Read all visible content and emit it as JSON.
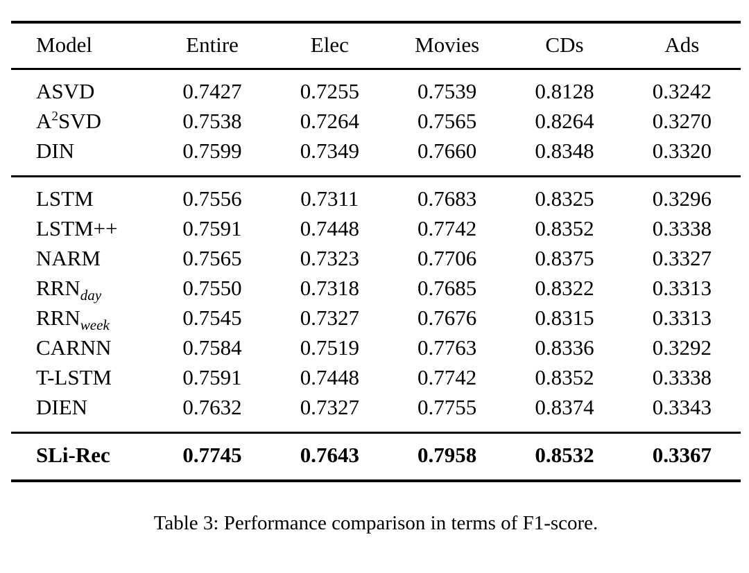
{
  "page": {
    "background_color": "#ffffff",
    "text_color": "#000000",
    "rule_color": "#000000"
  },
  "table": {
    "caption": "Table 3: Performance comparison in terms of F1-score.",
    "columns": [
      "Model",
      "Entire",
      "Elec",
      "Movies",
      "CDs",
      "Ads"
    ],
    "groups": [
      {
        "name": "feature-interaction-baselines",
        "rows": [
          {
            "model": [
              {
                "t": "ASVD"
              }
            ],
            "bold": false,
            "values": [
              "0.7427",
              "0.7255",
              "0.7539",
              "0.8128",
              "0.3242"
            ]
          },
          {
            "model": [
              {
                "t": "A"
              },
              {
                "t": "2",
                "script": "sup"
              },
              {
                "t": "SVD"
              }
            ],
            "bold": false,
            "values": [
              "0.7538",
              "0.7264",
              "0.7565",
              "0.8264",
              "0.3270"
            ]
          },
          {
            "model": [
              {
                "t": "DIN"
              }
            ],
            "bold": false,
            "values": [
              "0.7599",
              "0.7349",
              "0.7660",
              "0.8348",
              "0.3320"
            ]
          }
        ]
      },
      {
        "name": "sequential-baselines",
        "rows": [
          {
            "model": [
              {
                "t": "LSTM"
              }
            ],
            "bold": false,
            "values": [
              "0.7556",
              "0.7311",
              "0.7683",
              "0.8325",
              "0.3296"
            ]
          },
          {
            "model": [
              {
                "t": "LSTM++"
              }
            ],
            "bold": false,
            "values": [
              "0.7591",
              "0.7448",
              "0.7742",
              "0.8352",
              "0.3338"
            ]
          },
          {
            "model": [
              {
                "t": "NARM"
              }
            ],
            "bold": false,
            "values": [
              "0.7565",
              "0.7323",
              "0.7706",
              "0.8375",
              "0.3327"
            ]
          },
          {
            "model": [
              {
                "t": "RRN"
              },
              {
                "t": "day",
                "script": "sub"
              }
            ],
            "bold": false,
            "values": [
              "0.7550",
              "0.7318",
              "0.7685",
              "0.8322",
              "0.3313"
            ]
          },
          {
            "model": [
              {
                "t": "RRN"
              },
              {
                "t": "week",
                "script": "sub"
              }
            ],
            "bold": false,
            "values": [
              "0.7545",
              "0.7327",
              "0.7676",
              "0.8315",
              "0.3313"
            ]
          },
          {
            "model": [
              {
                "t": "CARNN"
              }
            ],
            "bold": false,
            "values": [
              "0.7584",
              "0.7519",
              "0.7763",
              "0.8336",
              "0.3292"
            ]
          },
          {
            "model": [
              {
                "t": "T-LSTM"
              }
            ],
            "bold": false,
            "values": [
              "0.7591",
              "0.7448",
              "0.7742",
              "0.8352",
              "0.3338"
            ]
          },
          {
            "model": [
              {
                "t": "DIEN"
              }
            ],
            "bold": false,
            "values": [
              "0.7632",
              "0.7327",
              "0.7755",
              "0.8374",
              "0.3343"
            ]
          }
        ]
      },
      {
        "name": "proposed-model",
        "rows": [
          {
            "model": [
              {
                "t": "SLi-Rec"
              }
            ],
            "bold": true,
            "values": [
              "0.7745",
              "0.7643",
              "0.7958",
              "0.8532",
              "0.3367"
            ]
          }
        ]
      }
    ]
  }
}
